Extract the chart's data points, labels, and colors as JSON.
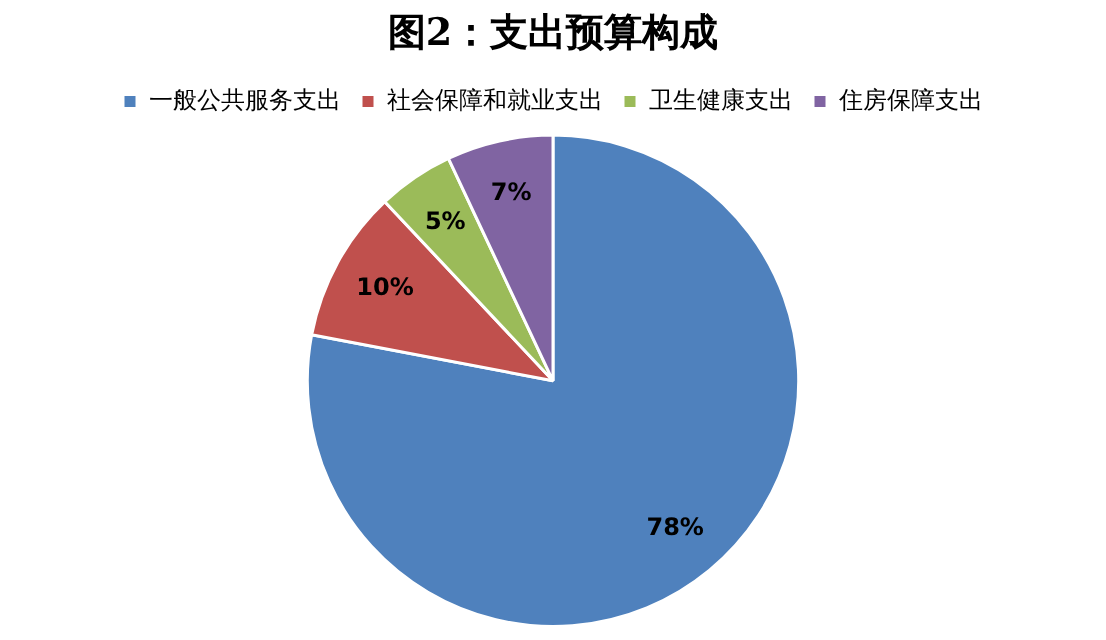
{
  "chart_data": {
    "type": "pie",
    "title": "图2：支出预算构成",
    "categories": [
      "一般公共服务支出",
      "社会保障和就业支出",
      "卫生健康支出",
      "住房保障支出"
    ],
    "values": [
      78,
      10,
      5,
      7
    ],
    "colors": [
      "#4f81bd",
      "#c0504d",
      "#9bbb59",
      "#8064a2"
    ],
    "value_labels": [
      "78%",
      "10%",
      "5%",
      "7%"
    ],
    "legend": "top"
  }
}
